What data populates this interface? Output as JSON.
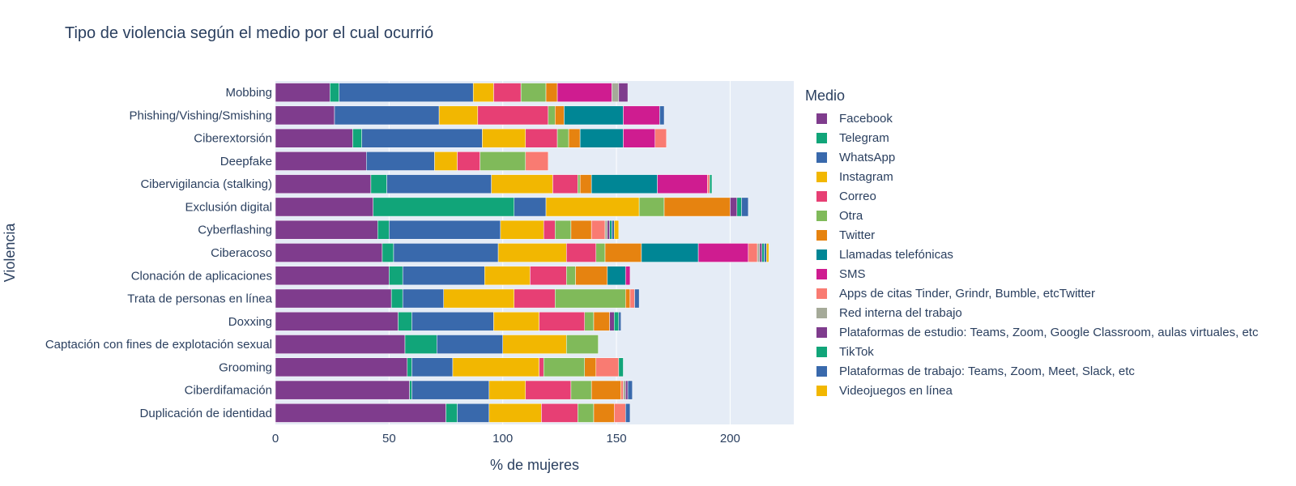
{
  "chart_data": {
    "type": "bar",
    "orientation": "horizontal",
    "barmode": "stack",
    "title": "Tipo de violencia según el medio por el cual ocurrió",
    "xlabel": "% de mujeres",
    "ylabel": "Violencia",
    "xlim": [
      0,
      228
    ],
    "xticks": [
      0,
      50,
      100,
      150,
      200
    ],
    "grid": true,
    "legend_title": "Medio",
    "legend_position": "right",
    "categories": [
      "Duplicación de identidad",
      "Ciberdifamación",
      "Grooming",
      "Captación con fines de explotación sexual",
      "Doxxing",
      "Trata de personas en línea",
      "Clonación de aplicaciones",
      "Ciberacoso",
      "Cyberflashing",
      "Exclusión digital",
      "Cibervigilancia (stalking)",
      "Deepfake",
      "Ciberextorsión",
      "Phishing/Vishing/Smishing",
      "Mobbing"
    ],
    "series": [
      {
        "name": "Facebook",
        "color": "#7F3C8D",
        "values": [
          75,
          59,
          58,
          57,
          54,
          51,
          50,
          47,
          45,
          43,
          42,
          40,
          34,
          26,
          24
        ]
      },
      {
        "name": "Telegram",
        "color": "#11A579",
        "values": [
          5,
          1,
          2,
          14,
          6,
          5,
          6,
          5,
          5,
          62,
          7,
          0,
          4,
          0,
          4
        ]
      },
      {
        "name": "WhatsApp",
        "color": "#3969AC",
        "values": [
          14,
          34,
          18,
          29,
          36,
          18,
          36,
          46,
          49,
          14,
          46,
          30,
          53,
          46,
          59
        ]
      },
      {
        "name": "Instagram",
        "color": "#F2B701",
        "values": [
          23,
          16,
          38,
          28,
          20,
          31,
          20,
          30,
          19,
          41,
          27,
          10,
          19,
          17,
          9
        ]
      },
      {
        "name": "Correo",
        "color": "#E73F74",
        "values": [
          16,
          20,
          2,
          0,
          20,
          18,
          16,
          13,
          5,
          0,
          11,
          10,
          14,
          31,
          12
        ]
      },
      {
        "name": "Otra",
        "color": "#80BA5A",
        "values": [
          7,
          9,
          18,
          14,
          4,
          31,
          4,
          4,
          7,
          11,
          1,
          20,
          5,
          3,
          11
        ]
      },
      {
        "name": "Twitter",
        "color": "#E68310",
        "values": [
          9,
          13,
          5,
          0,
          7,
          2,
          14,
          16,
          9,
          29,
          5,
          0,
          5,
          4,
          5
        ]
      },
      {
        "name": "Llamadas telefónicas",
        "color": "#008695",
        "values": [
          0,
          0,
          0,
          0,
          0,
          0,
          8,
          25,
          0,
          0,
          29,
          0,
          19,
          26,
          0
        ]
      },
      {
        "name": "SMS",
        "color": "#CF1C90",
        "values": [
          0,
          0,
          0,
          0,
          0,
          0,
          2,
          22,
          0,
          0,
          22,
          0,
          14,
          16,
          24
        ]
      },
      {
        "name": "Apps de citas Tinder, Grindr, Bumble, etcTwitter",
        "color": "#f97b72",
        "values": [
          5,
          1,
          10,
          0,
          0,
          2,
          0,
          4,
          6,
          0,
          1,
          10,
          5,
          0,
          0
        ]
      },
      {
        "name": "Red interna del trabajo",
        "color": "#A5AA99",
        "values": [
          0,
          1,
          0,
          0,
          0,
          0,
          0,
          1,
          1,
          0,
          0,
          0,
          0,
          0,
          3
        ]
      },
      {
        "name": "Plataformas de estudio: Teams, Zoom, Google Classroom, aulas virtuales, etc",
        "color": "#7F3C8D",
        "values": [
          0,
          1,
          0,
          0,
          2,
          0,
          0,
          1,
          1,
          3,
          0,
          0,
          0,
          0,
          4
        ]
      },
      {
        "name": "TikTok",
        "color": "#11A579",
        "values": [
          0,
          0,
          2,
          0,
          2,
          0,
          0,
          1,
          1,
          2,
          1,
          0,
          0,
          0,
          0
        ]
      },
      {
        "name": "Plataformas de trabajo: Teams, Zoom, Meet, Slack, etc",
        "color": "#3969AC",
        "values": [
          2,
          2,
          0,
          0,
          1,
          2,
          0,
          1,
          1,
          3,
          0,
          0,
          0,
          2,
          0
        ]
      },
      {
        "name": "Videojuegos en línea",
        "color": "#F2B701",
        "values": [
          0,
          0,
          0,
          0,
          0,
          0,
          0,
          1,
          2,
          0,
          0,
          0,
          0,
          0,
          0
        ]
      }
    ]
  }
}
